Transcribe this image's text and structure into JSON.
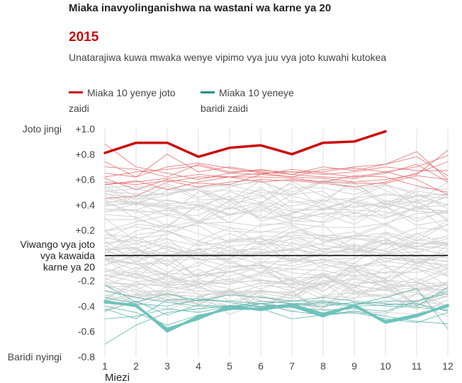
{
  "title": "Miaka inavyolinganishwa na wastani wa karne ya 20",
  "highlight_year": "2015",
  "subtitle": "Unatarajiwa kuwa mwaka wenye vipimo vya juu vya joto kuwahi kutokea",
  "legend": [
    {
      "label_line1": "Miaka 10 yenye joto",
      "label_line2": "zaidi",
      "color": "#cc0a0a"
    },
    {
      "label_line1": "Miaka 10 yeneye",
      "label_line2": "baridi zaidi",
      "color": "#2a8f83"
    }
  ],
  "colors": {
    "hot_year": "#cc0a0a",
    "hot_lines": "#e26a6a",
    "cold_lines": "#4fb1a6",
    "cold_bold": "#6cc3bb",
    "other": "#d4d4d4",
    "baseline": "#111111"
  },
  "chart_data": {
    "type": "line",
    "xlabel": "Miezi",
    "x": [
      1,
      2,
      3,
      4,
      5,
      6,
      7,
      8,
      9,
      10,
      11,
      12
    ],
    "ylim": [
      -0.8,
      1.0
    ],
    "y_ticks": [
      "+1.0",
      "+0.8",
      "+0.6",
      "+0.4",
      "+0.2",
      "-0.2",
      "-0.4",
      "-0.6",
      "-0.8"
    ],
    "y_tick_values": [
      1.0,
      0.8,
      0.6,
      0.4,
      0.2,
      -0.2,
      -0.4,
      -0.6,
      -0.8
    ],
    "y_annotations": {
      "top": "Joto jingi",
      "baseline_line1": "Viwango vya joto",
      "baseline_line2": "vya kawaida",
      "baseline_line3": "karne ya 20",
      "bottom": "Baridi nyingi"
    },
    "grid": "vertical",
    "series": [
      {
        "name": "2015",
        "kind": "highlight",
        "values": [
          0.81,
          0.89,
          0.89,
          0.78,
          0.85,
          0.87,
          0.8,
          0.89,
          0.9,
          0.98,
          null,
          null
        ]
      },
      {
        "kind": "hot",
        "values": [
          0.7,
          0.68,
          0.62,
          0.72,
          0.66,
          0.67,
          0.66,
          0.66,
          0.7,
          0.72,
          0.78,
          0.63
        ]
      },
      {
        "kind": "hot",
        "values": [
          0.62,
          0.66,
          0.68,
          0.71,
          0.65,
          0.64,
          0.68,
          0.65,
          0.62,
          0.66,
          0.7,
          0.79
        ]
      },
      {
        "kind": "hot",
        "values": [
          0.58,
          0.56,
          0.59,
          0.54,
          0.58,
          0.6,
          0.59,
          0.57,
          0.54,
          0.58,
          0.65,
          0.74
        ]
      },
      {
        "kind": "hot",
        "values": [
          0.56,
          0.58,
          0.61,
          0.64,
          0.62,
          0.58,
          0.6,
          0.58,
          0.57,
          0.57,
          0.63,
          0.6
        ]
      },
      {
        "kind": "hot",
        "values": [
          0.45,
          0.47,
          0.58,
          0.62,
          0.62,
          0.65,
          0.66,
          0.64,
          0.66,
          0.7,
          0.67,
          0.67
        ]
      },
      {
        "kind": "hot",
        "values": [
          0.74,
          0.62,
          0.7,
          0.73,
          0.69,
          0.65,
          0.62,
          0.68,
          0.69,
          0.66,
          0.6,
          0.48
        ]
      },
      {
        "kind": "hot",
        "values": [
          0.88,
          0.7,
          0.65,
          0.6,
          0.65,
          0.68,
          0.64,
          0.62,
          0.61,
          0.65,
          0.72,
          0.58
        ]
      },
      {
        "kind": "hot",
        "values": [
          0.56,
          0.59,
          0.52,
          0.58,
          0.62,
          0.62,
          0.61,
          0.58,
          0.63,
          0.62,
          0.55,
          0.5
        ]
      },
      {
        "kind": "hot",
        "values": [
          0.61,
          0.52,
          0.6,
          0.57,
          0.56,
          0.64,
          0.62,
          0.61,
          0.58,
          0.6,
          0.64,
          0.83
        ]
      },
      {
        "kind": "hot",
        "values": [
          0.65,
          0.62,
          0.8,
          0.66,
          0.7,
          0.66,
          0.64,
          0.7,
          0.67,
          0.72,
          0.82,
          0.6
        ]
      },
      {
        "kind": "cold-bold",
        "values": [
          -0.37,
          -0.39,
          -0.6,
          -0.48,
          -0.42,
          -0.42,
          -0.4,
          -0.48,
          -0.39,
          -0.53,
          -0.48,
          -0.39
        ]
      },
      {
        "kind": "cold-bold",
        "values": [
          -0.36,
          -0.4,
          -0.58,
          -0.5,
          -0.4,
          -0.43,
          -0.39,
          -0.46,
          -0.4,
          -0.52,
          -0.47,
          -0.4
        ]
      },
      {
        "kind": "cold",
        "values": [
          -0.7,
          -0.55,
          -0.45,
          -0.42,
          -0.4,
          -0.42,
          -0.5,
          -0.47,
          -0.45,
          -0.5,
          -0.53,
          -0.45
        ]
      },
      {
        "kind": "cold",
        "values": [
          -0.4,
          -0.45,
          -0.55,
          -0.47,
          -0.43,
          -0.38,
          -0.41,
          -0.43,
          -0.42,
          -0.44,
          -0.36,
          -0.3
        ]
      },
      {
        "kind": "cold",
        "values": [
          -0.28,
          -0.33,
          -0.37,
          -0.4,
          -0.41,
          -0.36,
          -0.38,
          -0.37,
          -0.39,
          -0.36,
          -0.36,
          -0.28
        ]
      },
      {
        "kind": "cold",
        "values": [
          -0.42,
          -0.5,
          -0.35,
          -0.34,
          -0.37,
          -0.41,
          -0.38,
          -0.4,
          -0.37,
          -0.4,
          -0.41,
          -0.43
        ]
      },
      {
        "kind": "cold",
        "values": [
          -0.44,
          -0.36,
          -0.47,
          -0.39,
          -0.4,
          -0.38,
          -0.44,
          -0.47,
          -0.44,
          -0.48,
          -0.52,
          -0.54
        ]
      },
      {
        "kind": "cold",
        "values": [
          -0.5,
          -0.48,
          -0.42,
          -0.45,
          -0.4,
          -0.4,
          -0.39,
          -0.38,
          -0.4,
          -0.39,
          -0.38,
          -0.44
        ]
      },
      {
        "kind": "cold",
        "values": [
          -0.23,
          -0.37,
          -0.3,
          -0.36,
          -0.31,
          -0.33,
          -0.36,
          -0.33,
          -0.36,
          -0.38,
          -0.4,
          -0.25
        ]
      },
      {
        "kind": "cold",
        "values": [
          -0.33,
          -0.38,
          -0.4,
          -0.35,
          -0.36,
          -0.38,
          -0.36,
          -0.36,
          -0.39,
          -0.33,
          -0.26,
          -0.58
        ]
      }
    ]
  }
}
